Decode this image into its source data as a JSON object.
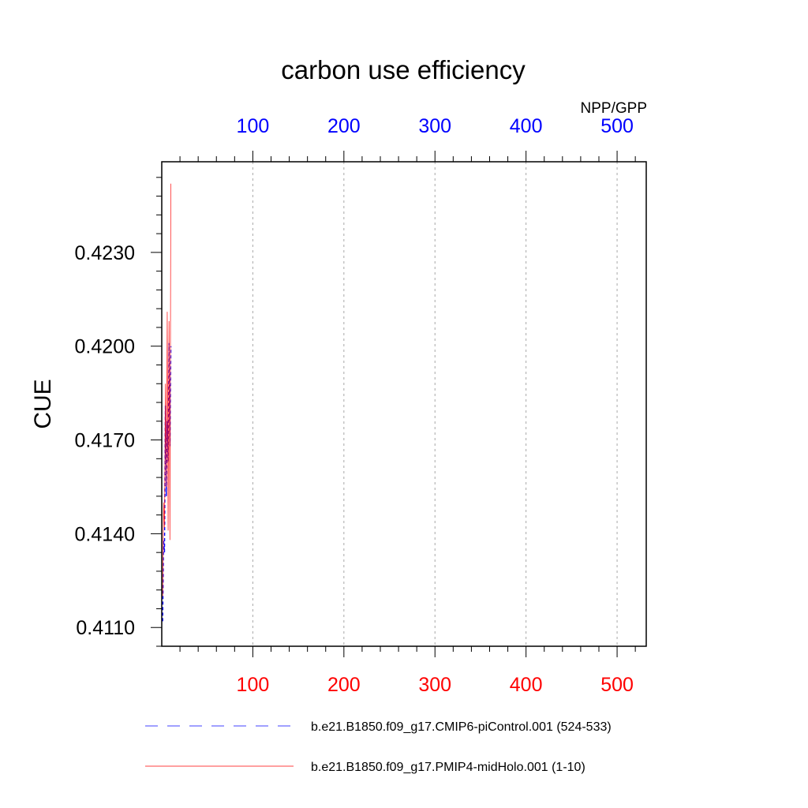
{
  "chart_data": {
    "type": "line",
    "title": "carbon use efficiency",
    "subtitle": "NPP/GPP",
    "ylabel": "CUE",
    "xlabel": "",
    "xlim": [
      0,
      532
    ],
    "ylim": [
      0.4104,
      0.4259
    ],
    "grid": "vertical dashed",
    "bottom_axis": {
      "color": "#ff0000",
      "ticks": [
        100,
        200,
        300,
        400,
        500
      ],
      "tick_labels": [
        "100",
        "200",
        "300",
        "400",
        "500"
      ]
    },
    "top_axis": {
      "color": "#0000ff",
      "ticks": [
        100,
        200,
        300,
        400,
        500
      ],
      "tick_labels": [
        "100",
        "200",
        "300",
        "400",
        "500"
      ]
    },
    "y_ticks": [
      0.411,
      0.414,
      0.417,
      0.42,
      0.423
    ],
    "y_tick_labels": [
      "0.4110",
      "0.4140",
      "0.4170",
      "0.4200",
      "0.4230"
    ],
    "series": [
      {
        "name": "b.e21.B1850.f09_g17.CMIP6-piControl.001 (524-533)",
        "color": "#0000ff",
        "dash": "dashed",
        "x": [
          1,
          2,
          3,
          4,
          5,
          6,
          7,
          8,
          9,
          10
        ],
        "y": [
          0.4112,
          0.4138,
          0.4134,
          0.4181,
          0.4152,
          0.4176,
          0.4163,
          0.4201,
          0.4168,
          0.42
        ]
      },
      {
        "name": "b.e21.B1850.f09_g17.PMIP4-midHolo.001 (1-10)",
        "color": "#ff0000",
        "dash": "solid",
        "x": [
          1,
          2,
          3,
          4,
          5,
          6,
          7,
          8,
          9,
          10
        ],
        "y": [
          0.412,
          0.415,
          0.4142,
          0.4188,
          0.4155,
          0.4211,
          0.4141,
          0.4208,
          0.4138,
          0.4252
        ]
      }
    ]
  }
}
